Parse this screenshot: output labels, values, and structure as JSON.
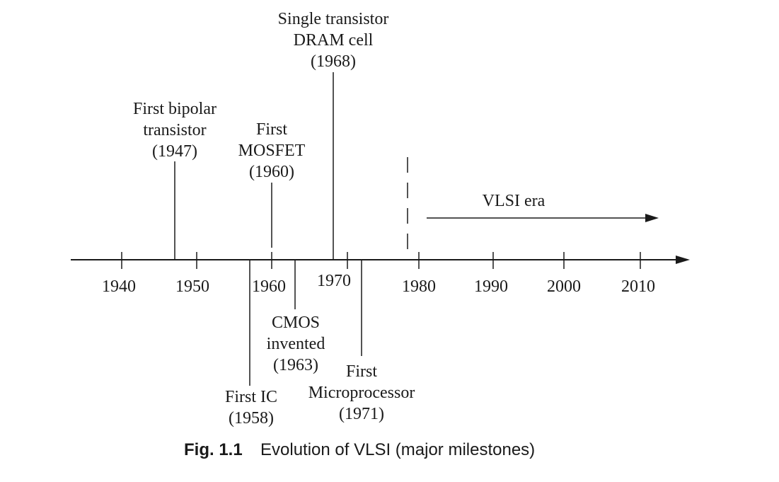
{
  "timeline": {
    "ticks": [
      "1940",
      "1950",
      "1960",
      "1970",
      "1980",
      "1990",
      "2000",
      "2010"
    ]
  },
  "milestones": [
    {
      "id": "bipolar",
      "lines": [
        "First bipolar",
        "transistor",
        "(1947)"
      ]
    },
    {
      "id": "mosfet",
      "lines": [
        "First",
        "MOSFET",
        "(1960)"
      ]
    },
    {
      "id": "dram",
      "lines": [
        "Single transistor",
        "DRAM cell",
        "(1968)"
      ]
    },
    {
      "id": "ic",
      "lines": [
        "First IC",
        "(1958)"
      ]
    },
    {
      "id": "cmos",
      "lines": [
        "CMOS",
        "invented",
        "(1963)"
      ]
    },
    {
      "id": "micro",
      "lines": [
        "First",
        "Microprocessor",
        "(1971)"
      ]
    }
  ],
  "era": {
    "label": "VLSI era"
  },
  "caption": {
    "number": "Fig. 1.1",
    "text": "Evolution of VLSI (major milestones)"
  }
}
